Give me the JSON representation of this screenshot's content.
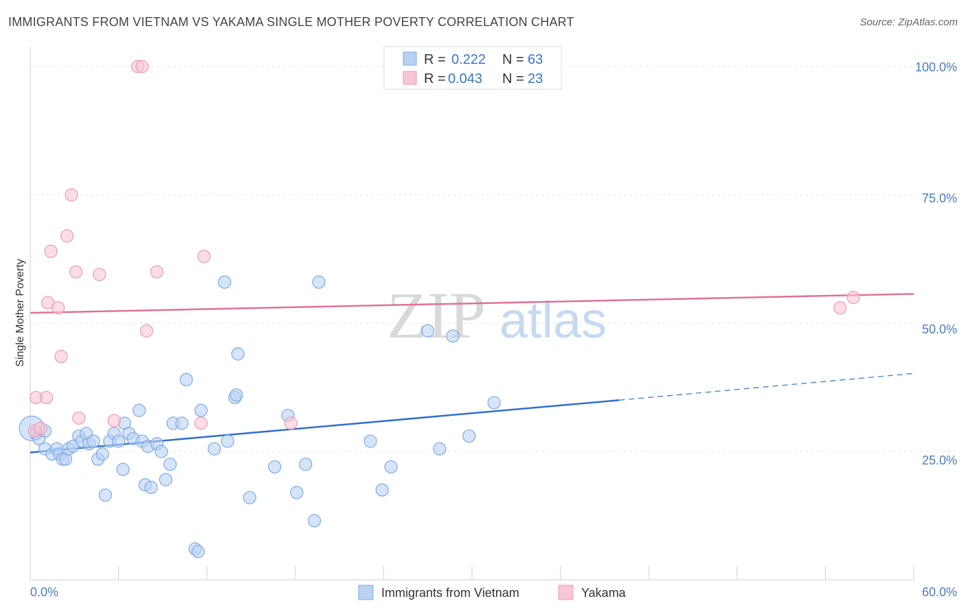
{
  "title": "IMMIGRANTS FROM VIETNAM VS YAKAMA SINGLE MOTHER POVERTY CORRELATION CHART",
  "source": "Source: ZipAtlas.com",
  "watermark": {
    "zip": "ZIP",
    "atlas": "atlas"
  },
  "colors": {
    "blue_fill": "#b9d2f3",
    "blue_stroke": "#7faae2",
    "blue_line": "#2f6fd0",
    "pink_fill": "#f8c6d5",
    "pink_stroke": "#eb9ab4",
    "pink_line": "#e07098"
  },
  "legend": {
    "r_label": "R =",
    "n_label": "N =",
    "blue_r": "0.222",
    "blue_n": "63",
    "pink_r": "0.043",
    "pink_n": "23"
  },
  "chart_data": {
    "type": "scatter",
    "title": "IMMIGRANTS FROM VIETNAM VS YAKAMA SINGLE MOTHER POVERTY CORRELATION CHART",
    "ylabel": "Single Mother Poverty",
    "xlim": [
      0,
      60
    ],
    "ylim": [
      0,
      100
    ],
    "x_tick_labels": [
      "0.0%",
      "60.0%"
    ],
    "y_ticks": [
      25,
      50,
      75,
      100
    ],
    "y_tick_labels": [
      "25.0%",
      "50.0%",
      "75.0%",
      "100.0%"
    ],
    "grid": true,
    "legend_position": "top-center",
    "series": [
      {
        "name": "Immigrants from Vietnam",
        "color": "#b9d2f3",
        "points": [
          [
            0.1,
            29.5
          ],
          [
            0.4,
            28.5
          ],
          [
            0.6,
            27.5
          ],
          [
            1.0,
            29.0
          ],
          [
            1.0,
            25.5
          ],
          [
            1.5,
            24.5
          ],
          [
            1.8,
            25.5
          ],
          [
            2.0,
            24.5
          ],
          [
            2.2,
            23.5
          ],
          [
            2.4,
            23.5
          ],
          [
            2.6,
            25.5
          ],
          [
            2.9,
            26.0
          ],
          [
            3.3,
            28.0
          ],
          [
            3.5,
            27.0
          ],
          [
            3.8,
            28.5
          ],
          [
            4.0,
            26.5
          ],
          [
            4.3,
            27.0
          ],
          [
            4.6,
            23.5
          ],
          [
            4.9,
            24.5
          ],
          [
            5.1,
            16.5
          ],
          [
            5.4,
            27.0
          ],
          [
            5.7,
            28.5
          ],
          [
            6.0,
            27.0
          ],
          [
            6.3,
            21.5
          ],
          [
            6.4,
            30.5
          ],
          [
            6.7,
            28.5
          ],
          [
            7.0,
            27.5
          ],
          [
            7.4,
            33.0
          ],
          [
            7.6,
            27.0
          ],
          [
            7.8,
            18.5
          ],
          [
            8.0,
            26.0
          ],
          [
            8.2,
            18.0
          ],
          [
            8.6,
            26.5
          ],
          [
            8.9,
            25.0
          ],
          [
            9.2,
            19.5
          ],
          [
            9.5,
            22.5
          ],
          [
            9.7,
            30.5
          ],
          [
            10.3,
            30.5
          ],
          [
            10.6,
            39.0
          ],
          [
            11.2,
            6.0
          ],
          [
            11.4,
            5.5
          ],
          [
            11.6,
            33.0
          ],
          [
            12.5,
            25.5
          ],
          [
            13.2,
            58.0
          ],
          [
            13.4,
            27.0
          ],
          [
            13.9,
            35.5
          ],
          [
            14.0,
            36.0
          ],
          [
            14.1,
            44.0
          ],
          [
            14.9,
            16.0
          ],
          [
            16.6,
            22.0
          ],
          [
            17.5,
            32.0
          ],
          [
            18.1,
            17.0
          ],
          [
            18.7,
            22.5
          ],
          [
            19.3,
            11.5
          ],
          [
            19.6,
            58.0
          ],
          [
            23.1,
            27.0
          ],
          [
            23.9,
            17.5
          ],
          [
            24.5,
            22.0
          ],
          [
            27.0,
            48.5
          ],
          [
            27.8,
            25.5
          ],
          [
            28.7,
            47.5
          ],
          [
            29.8,
            28.0
          ],
          [
            31.5,
            34.5
          ]
        ]
      },
      {
        "name": "Yakama",
        "color": "#f8c6d5",
        "points": [
          [
            0.3,
            29.0
          ],
          [
            0.4,
            35.5
          ],
          [
            0.7,
            29.5
          ],
          [
            1.1,
            35.5
          ],
          [
            1.2,
            54.0
          ],
          [
            1.4,
            64.0
          ],
          [
            1.9,
            53.0
          ],
          [
            2.1,
            43.5
          ],
          [
            2.5,
            67.0
          ],
          [
            2.8,
            75.0
          ],
          [
            3.1,
            60.0
          ],
          [
            3.3,
            31.5
          ],
          [
            4.7,
            59.5
          ],
          [
            5.7,
            31.0
          ],
          [
            7.3,
            100.0
          ],
          [
            7.6,
            100.0
          ],
          [
            7.9,
            48.5
          ],
          [
            8.6,
            60.0
          ],
          [
            11.6,
            30.5
          ],
          [
            11.8,
            63.0
          ],
          [
            17.7,
            30.5
          ],
          [
            55.0,
            53.0
          ],
          [
            55.9,
            55.0
          ]
        ]
      }
    ],
    "trend_lines": [
      {
        "series": "Immigrants from Vietnam",
        "from": [
          0,
          24.8
        ],
        "to": [
          40,
          35.0
        ],
        "dashed_to": [
          60,
          40.2
        ]
      },
      {
        "series": "Yakama",
        "from": [
          0,
          52.0
        ],
        "to": [
          60,
          55.7
        ]
      }
    ]
  }
}
